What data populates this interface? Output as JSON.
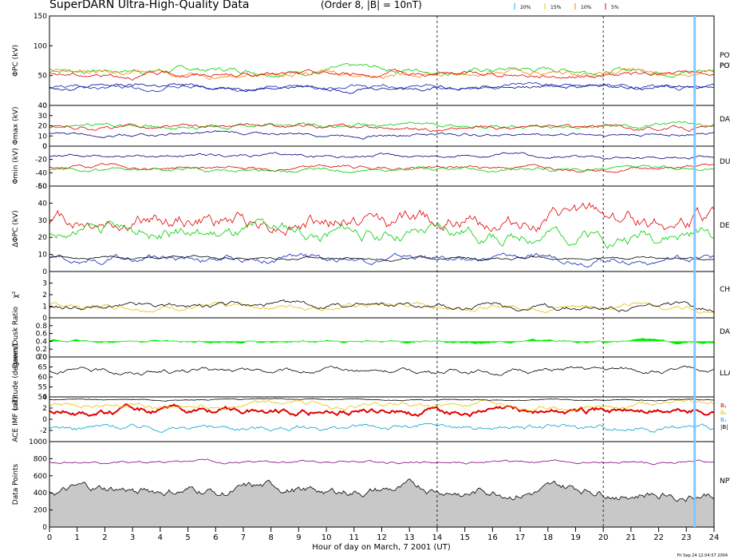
{
  "header": {
    "title": "SuperDARN Ultra-High-Quality Data",
    "subtitle": "(Order 8, |B| = 10nT)",
    "legend": [
      {
        "label": "20%",
        "color": "#00b0ff"
      },
      {
        "label": "15%",
        "color": "#e8c000"
      },
      {
        "label": "10%",
        "color": "#ff8000"
      },
      {
        "label": "5%",
        "color": "#e00000"
      }
    ]
  },
  "xaxis": {
    "label": "Hour of day on March, 7 2001 (UT)",
    "ticks": [
      "0",
      "1",
      "2",
      "3",
      "4",
      "5",
      "6",
      "7",
      "8",
      "9",
      "10",
      "11",
      "12",
      "13",
      "14",
      "15",
      "16",
      "17",
      "18",
      "19",
      "20",
      "21",
      "22",
      "23",
      "24"
    ]
  },
  "timestamp": "Fri Sep 24 12:04:57 2004",
  "right_labels": [
    "POT",
    "POT",
    "DAY",
    "DUS",
    "DEL",
    "CH",
    "DAY",
    "LLA",
    "NPT"
  ],
  "ace_legend": [
    {
      "label": "Bᵧ",
      "color": "#e00000"
    },
    {
      "label": "Bᵤ",
      "color": "#e8c000"
    },
    {
      "label": "Bₓ",
      "color": "#00b0ff"
    },
    {
      "label": "|B|",
      "color": "#000000"
    }
  ],
  "chart_data": [
    {
      "type": "line",
      "ylabel": "ΦPC (kV)",
      "ylim": [
        0,
        150
      ],
      "ticks": [
        "0",
        "50",
        "100",
        "150"
      ],
      "series": [
        {
          "color": "#00cc00",
          "base": 60,
          "amp": 12
        },
        {
          "color": "#ff8000",
          "base": 55,
          "amp": 12
        },
        {
          "color": "#e00000",
          "base": 52,
          "amp": 10
        },
        {
          "color": "#000080",
          "base": 32,
          "amp": 9
        },
        {
          "color": "#1020c0",
          "base": 30,
          "amp": 9
        }
      ]
    },
    {
      "type": "line",
      "ylabel": "Φmax (kV)",
      "ylim": [
        0,
        40
      ],
      "ticks": [
        "0",
        "10",
        "20",
        "30",
        "40"
      ],
      "series": [
        {
          "color": "#00cc00",
          "base": 20,
          "amp": 5
        },
        {
          "color": "#e00000",
          "base": 18,
          "amp": 5
        },
        {
          "color": "#000080",
          "base": 12,
          "amp": 4
        }
      ]
    },
    {
      "type": "line",
      "ylabel": "Φmin (kV)",
      "ylim": [
        -60,
        0
      ],
      "ticks": [
        "-60",
        "-40",
        "-20",
        "0"
      ],
      "series": [
        {
          "color": "#000080",
          "base": -15,
          "amp": 6
        },
        {
          "color": "#e00000",
          "base": -32,
          "amp": 7
        },
        {
          "color": "#00cc00",
          "base": -36,
          "amp": 7
        }
      ]
    },
    {
      "type": "line",
      "ylabel": "ΔΦPC (kV)",
      "ylim": [
        0,
        50
      ],
      "ticks": [
        "0",
        "10",
        "20",
        "30",
        "40",
        "50"
      ],
      "series": [
        {
          "color": "#e00000",
          "base": 30,
          "amp": 12
        },
        {
          "color": "#00cc00",
          "base": 22,
          "amp": 10
        },
        {
          "color": "#1020c0",
          "base": 8,
          "amp": 5
        },
        {
          "color": "#000000",
          "base": 8,
          "amp": 2
        }
      ]
    },
    {
      "type": "line",
      "ylabel": "χ²",
      "ylim": [
        0,
        4
      ],
      "ticks": [
        "0",
        "1",
        "2",
        "3"
      ],
      "series": [
        {
          "color": "#e8c000",
          "base": 1.0,
          "amp": 0.6
        },
        {
          "color": "#000000",
          "base": 0.95,
          "amp": 0.6
        }
      ]
    },
    {
      "type": "area",
      "ylabel": "Dawn/Dusk Ratio",
      "ylim": [
        0.0,
        1.0
      ],
      "ticks": [
        "0.0",
        "0.2",
        "0.4",
        "0.6",
        "0.8"
      ],
      "series": [
        {
          "color": "#00ee00",
          "base": 0.4,
          "amp": 0.08
        }
      ]
    },
    {
      "type": "line",
      "ylabel": "Latitude (degrees)",
      "ylim": [
        50,
        70
      ],
      "ticks": [
        "50",
        "55",
        "60",
        "65",
        "70"
      ],
      "series": [
        {
          "color": "#000000",
          "base": 63,
          "amp": 3
        }
      ]
    },
    {
      "type": "line",
      "ylabel": "ACE IMF (nT)",
      "ylim": [
        -4,
        4
      ],
      "ticks": [
        "-2",
        "0",
        "2",
        "4"
      ],
      "series": [
        {
          "color": "#e00000",
          "base": 1.5,
          "amp": 1.5
        },
        {
          "color": "#e8c000",
          "base": 2.5,
          "amp": 1.2
        },
        {
          "color": "#00a0d0",
          "base": -1.5,
          "amp": 1.2
        },
        {
          "color": "#000000",
          "base": 3.5,
          "amp": 0.3
        }
      ]
    },
    {
      "type": "area",
      "ylabel": "Data Points",
      "ylim": [
        0,
        1000
      ],
      "ticks": [
        "0",
        "200",
        "400",
        "600",
        "800",
        "1000"
      ],
      "series": [
        {
          "color": "#000000",
          "base": 420,
          "amp": 140
        },
        {
          "color": "#800080",
          "base": 760,
          "amp": 40
        }
      ]
    }
  ]
}
